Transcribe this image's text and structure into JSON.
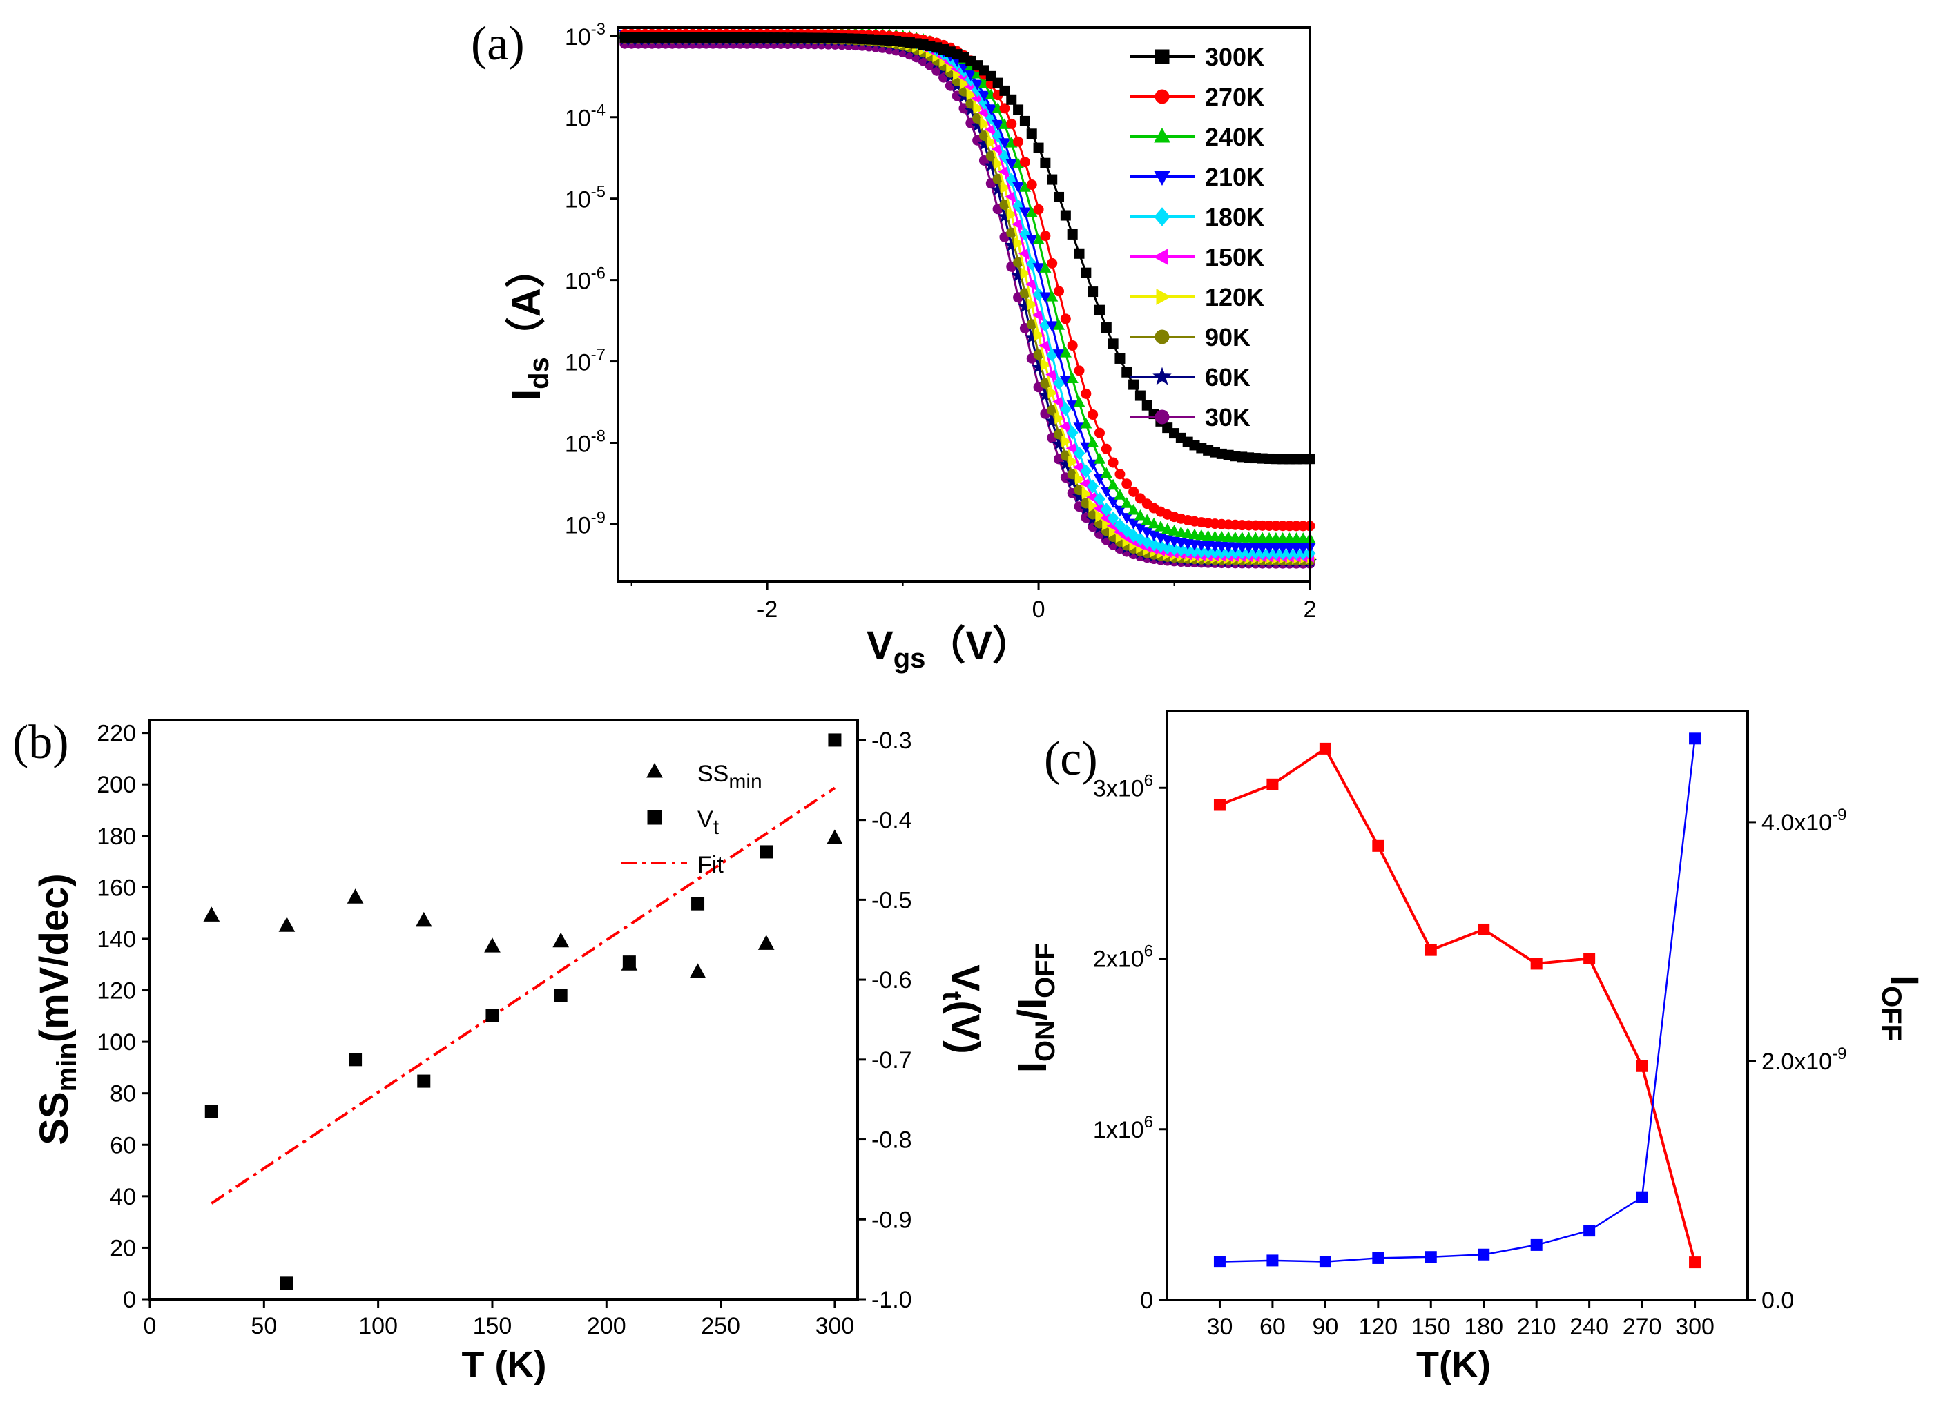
{
  "chart_data": [
    {
      "panel": "(a)",
      "type": "line",
      "xlabel": {
        "main": "V",
        "sub": "gs",
        "unit": "（V）"
      },
      "ylabel": {
        "main": "I",
        "sub": "ds",
        "unit": "（A）"
      },
      "xlim": [
        -3.1,
        2.0
      ],
      "ylim_log10": [
        -9.7,
        -2.9
      ],
      "xticks": [
        {
          "v": -2,
          "label": "-2"
        },
        {
          "v": 0,
          "label": "0"
        },
        {
          "v": 2,
          "label": "2"
        }
      ],
      "yticks": [
        {
          "exp": -9,
          "base": "10",
          "power": "-9"
        },
        {
          "exp": -8,
          "base": "10",
          "power": "-8"
        },
        {
          "exp": -7,
          "base": "10",
          "power": "-7"
        },
        {
          "exp": -6,
          "base": "10",
          "power": "-6"
        },
        {
          "exp": -5,
          "base": "10",
          "power": "-5"
        },
        {
          "exp": -4,
          "base": "10",
          "power": "-4"
        },
        {
          "exp": -3,
          "base": "10",
          "power": "-3"
        }
      ],
      "legend_position": "top-right",
      "series": [
        {
          "name": "300K",
          "color": "#000000",
          "marker": "square",
          "ion": 0.00095,
          "ioff": 4.7e-09,
          "vt": 0.3,
          "ss": 0.28,
          "rise": 0.0035
        },
        {
          "name": "270K",
          "color": "#ff0000",
          "marker": "circle",
          "ion": 0.00105,
          "ioff": 9.5e-10,
          "vt": 0.13,
          "ss": 0.22
        },
        {
          "name": "240K",
          "color": "#00c800",
          "marker": "triangle-up",
          "ion": 0.0011,
          "ioff": 6.6e-10,
          "vt": 0.08,
          "ss": 0.22
        },
        {
          "name": "210K",
          "color": "#0000ff",
          "marker": "triangle-down",
          "ion": 0.00105,
          "ioff": 5.2e-10,
          "vt": 0.04,
          "ss": 0.22
        },
        {
          "name": "180K",
          "color": "#00e0ff",
          "marker": "diamond",
          "ion": 0.001,
          "ioff": 4.4e-10,
          "vt": 0.0,
          "ss": 0.21
        },
        {
          "name": "150K",
          "color": "#ff00ff",
          "marker": "triangle-left",
          "ion": 0.00098,
          "ioff": 4e-10,
          "vt": -0.03,
          "ss": 0.21
        },
        {
          "name": "120K",
          "color": "#f0f000",
          "marker": "triangle-right",
          "ion": 0.00095,
          "ioff": 3.8e-10,
          "vt": -0.06,
          "ss": 0.21
        },
        {
          "name": "90K",
          "color": "#808000",
          "marker": "circle",
          "ion": 0.00092,
          "ioff": 3.6e-10,
          "vt": -0.09,
          "ss": 0.21
        },
        {
          "name": "60K",
          "color": "#000080",
          "marker": "star",
          "ion": 0.0009,
          "ioff": 3.5e-10,
          "vt": -0.11,
          "ss": 0.21
        },
        {
          "name": "30K",
          "color": "#800080",
          "marker": "hexagon",
          "ion": 0.0008,
          "ioff": 3.3e-10,
          "vt": -0.14,
          "ss": 0.21
        }
      ]
    },
    {
      "panel": "(b)",
      "type": "scatter",
      "xlabel": "T (K)",
      "ylabel": {
        "main": "SS",
        "sub": "min",
        "unit": "(mV/dec)"
      },
      "y2label": {
        "main": "V",
        "sub": "t",
        "unit": "(V)"
      },
      "xlim": [
        0,
        310
      ],
      "ylim": [
        0,
        225
      ],
      "y2lim": [
        -1.0,
        -0.275
      ],
      "xticks": [
        0,
        50,
        100,
        150,
        200,
        250,
        300
      ],
      "yticks": [
        0,
        20,
        40,
        60,
        80,
        100,
        120,
        140,
        160,
        180,
        200,
        220
      ],
      "y2ticks": [
        {
          "v": -1.0,
          "label": "-1.0"
        },
        {
          "v": -0.9,
          "label": "-0.9"
        },
        {
          "v": -0.8,
          "label": "-0.8"
        },
        {
          "v": -0.7,
          "label": "-0.7"
        },
        {
          "v": -0.6,
          "label": "-0.6"
        },
        {
          "v": -0.5,
          "label": "-0.5"
        },
        {
          "v": -0.4,
          "label": "-0.4"
        },
        {
          "v": -0.3,
          "label": "-0.3"
        }
      ],
      "legend_position": "top-right",
      "legend": [
        {
          "main": "SS",
          "sub": "min",
          "marker": "triangle"
        },
        {
          "main": "V",
          "sub": "t",
          "marker": "square"
        },
        {
          "main": "Fit",
          "sub": "",
          "marker": "dash-dot"
        }
      ],
      "ss_min": {
        "x": [
          27,
          60,
          90,
          120,
          150,
          180,
          210,
          240,
          270,
          300
        ],
        "y": [
          149,
          145,
          156,
          147,
          137,
          139,
          130,
          127,
          138,
          179
        ]
      },
      "vt": {
        "x": [
          27,
          60,
          90,
          120,
          150,
          180,
          210,
          240,
          270,
          300
        ],
        "y": [
          -0.765,
          -0.98,
          -0.7,
          -0.727,
          -0.645,
          -0.62,
          -0.578,
          -0.505,
          -0.44,
          -0.3
        ]
      },
      "fit": {
        "x": [
          27,
          300
        ],
        "y": [
          -0.88,
          -0.36
        ],
        "color": "#ff0000"
      }
    },
    {
      "panel": "(c)",
      "type": "line",
      "xlabel": "T(K)",
      "ylabel": {
        "main": "I",
        "sub": "ON",
        "mid": "/I",
        "sub2": "OFF"
      },
      "y2label": {
        "main": "I",
        "sub": "OFF"
      },
      "categories": [
        "30",
        "60",
        "90",
        "120",
        "150",
        "180",
        "210",
        "240",
        "270",
        "300"
      ],
      "xlim": [
        0,
        11
      ],
      "ylim": [
        0,
        3450000
      ],
      "y2lim": [
        0,
        4.93e-09
      ],
      "yticks": [
        {
          "v": 0,
          "base": "0",
          "power": ""
        },
        {
          "v": 1000000,
          "base": "1x10",
          "power": "6"
        },
        {
          "v": 2000000,
          "base": "2x10",
          "power": "6"
        },
        {
          "v": 3000000,
          "base": "3x10",
          "power": "6"
        }
      ],
      "y2ticks": [
        {
          "v": 0,
          "label": "0.0"
        },
        {
          "v": 2e-09,
          "label": "2.0x10",
          "power": "-9"
        },
        {
          "v": 4e-09,
          "label": "4.0x10",
          "power": "-9"
        }
      ],
      "series": [
        {
          "name": "ION/IOFF",
          "axis": "left",
          "color": "#ff0000",
          "values": [
            2900000,
            3020000,
            3230000,
            2660000,
            2050000,
            2170000,
            1970000,
            2000000,
            1370000,
            220000
          ]
        },
        {
          "name": "IOFF",
          "axis": "right",
          "color": "#0000ff",
          "values": [
            3.2e-10,
            3.3e-10,
            3.2e-10,
            3.5e-10,
            3.6e-10,
            3.8e-10,
            4.6e-10,
            5.8e-10,
            8.6e-10,
            4.7e-09
          ]
        }
      ]
    }
  ]
}
